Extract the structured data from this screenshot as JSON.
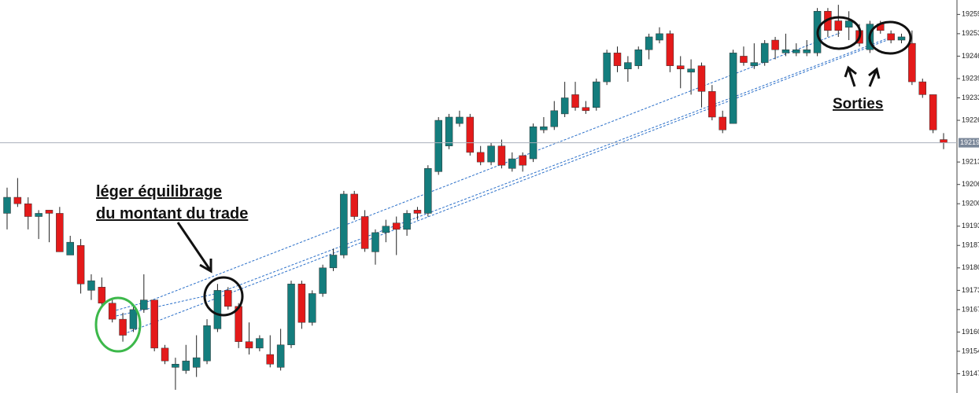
{
  "chart_data": {
    "type": "candlestick",
    "up_color": "#147d7d",
    "down_color": "#e41a1a",
    "ylim": [
      19141,
      19263.5
    ],
    "yticks": [
      19147,
      19154,
      19160,
      19167,
      19173,
      19180,
      19187,
      19193,
      19200,
      19206,
      19213,
      19226,
      19233,
      19239,
      19246,
      19253,
      19259
    ],
    "last_price": 19219,
    "annotations": [
      "léger équilibrage",
      "du montant du trade",
      "Sorties"
    ],
    "ohlc": [
      [
        19197,
        19205,
        19192,
        19202
      ],
      [
        19202,
        19208,
        19199,
        19200
      ],
      [
        19200,
        19202,
        19192,
        19196
      ],
      [
        19196,
        19198,
        19189,
        19197
      ],
      [
        19198,
        19198,
        19188,
        19197
      ],
      [
        19197,
        19199,
        19185,
        19185
      ],
      [
        19184,
        19190,
        19184,
        19188
      ],
      [
        19187,
        19189,
        19172,
        19175
      ],
      [
        19173,
        19178,
        19170,
        19176
      ],
      [
        19174,
        19177,
        19168,
        19169
      ],
      [
        19169,
        19170,
        19163,
        19164
      ],
      [
        19164,
        19166,
        19157,
        19159
      ],
      [
        19161,
        19168,
        19160,
        19167
      ],
      [
        19167,
        19178,
        19166,
        19170
      ],
      [
        19170,
        19170,
        19154,
        19155
      ],
      [
        19155,
        19156,
        19150,
        19151
      ],
      [
        19149,
        19152,
        19142,
        19150
      ],
      [
        19148,
        19156,
        19147,
        19151
      ],
      [
        19149,
        19159,
        19146,
        19152
      ],
      [
        19151,
        19164,
        19150,
        19162
      ],
      [
        19161,
        19175,
        19160,
        19173
      ],
      [
        19173,
        19174,
        19167,
        19168
      ],
      [
        19168,
        19169,
        19155,
        19157
      ],
      [
        19157,
        19163,
        19153,
        19155
      ],
      [
        19155,
        19159,
        19154,
        19158
      ],
      [
        19153,
        19159,
        19149,
        19150
      ],
      [
        19149,
        19161,
        19148,
        19156
      ],
      [
        19156,
        19176,
        19155,
        19175
      ],
      [
        19175,
        19176,
        19161,
        19163
      ],
      [
        19163,
        19173,
        19162,
        19172
      ],
      [
        19172,
        19181,
        19171,
        19180
      ],
      [
        19180,
        19186,
        19179,
        19184
      ],
      [
        19184,
        19204,
        19183,
        19203
      ],
      [
        19203,
        19204,
        19195,
        19196
      ],
      [
        19196,
        19198,
        19185,
        19186
      ],
      [
        19185,
        19192,
        19181,
        19191
      ],
      [
        19191,
        19195,
        19188,
        19193
      ],
      [
        19194,
        19196,
        19184,
        19192
      ],
      [
        19192,
        19198,
        19190,
        19197
      ],
      [
        19198,
        19199,
        19195,
        19197
      ],
      [
        19197,
        19212,
        19196,
        19211
      ],
      [
        19210,
        19227,
        19209,
        19226
      ],
      [
        19218,
        19228,
        19217,
        19227
      ],
      [
        19225,
        19229,
        19224,
        19227
      ],
      [
        19227,
        19228,
        19215,
        19216
      ],
      [
        19216,
        19218,
        19212,
        19213
      ],
      [
        19213,
        19219,
        19212,
        19218
      ],
      [
        19218,
        19220,
        19211,
        19212
      ],
      [
        19211,
        19216,
        19210,
        19214
      ],
      [
        19215,
        19216,
        19210,
        19212
      ],
      [
        19214,
        19225,
        19213,
        19224
      ],
      [
        19223,
        19227,
        19222,
        19224
      ],
      [
        19224,
        19232,
        19223,
        19229
      ],
      [
        19228,
        19238,
        19227,
        19233
      ],
      [
        19234,
        19238,
        19229,
        19230
      ],
      [
        19230,
        19232,
        19228,
        19229
      ],
      [
        19230,
        19239,
        19229,
        19238
      ],
      [
        19238,
        19248,
        19237,
        19247
      ],
      [
        19247,
        19249,
        19241,
        19243
      ],
      [
        19242,
        19246,
        19238,
        19244
      ],
      [
        19243,
        19249,
        19242,
        19248
      ],
      [
        19248,
        19253,
        19245,
        19252
      ],
      [
        19251,
        19255,
        19250,
        19253
      ],
      [
        19253,
        19254,
        19241,
        19243
      ],
      [
        19243,
        19246,
        19236,
        19242
      ],
      [
        19241,
        19245,
        19234,
        19242
      ],
      [
        19243,
        19244,
        19230,
        19235
      ],
      [
        19235,
        19237,
        19226,
        19227
      ],
      [
        19227,
        19229,
        19222,
        19223
      ],
      [
        19225,
        19248,
        19225,
        19247
      ],
      [
        19246,
        19249,
        19243,
        19244
      ],
      [
        19243,
        19250,
        19242,
        19244
      ],
      [
        19244,
        19251,
        19243,
        19250
      ],
      [
        19251,
        19252,
        19245,
        19248
      ],
      [
        19247,
        19253,
        19246,
        19248
      ],
      [
        19247,
        19250,
        19246,
        19248
      ],
      [
        19247,
        19251,
        19246,
        19248
      ],
      [
        19247,
        19261,
        19246,
        19260
      ],
      [
        19260,
        19261,
        19252,
        19254
      ],
      [
        19257,
        19262,
        19252,
        19254
      ],
      [
        19255,
        19260,
        19251,
        19257
      ],
      [
        19254,
        19256,
        19249,
        19250
      ],
      [
        19248,
        19257,
        19247,
        19256
      ],
      [
        19256,
        19257,
        19253,
        19254
      ],
      [
        19253,
        19254,
        19250,
        19251
      ],
      [
        19251,
        19253,
        19250,
        19252
      ],
      [
        19250,
        19254,
        19237,
        19238
      ],
      [
        19238,
        19239,
        19233,
        19234
      ],
      [
        19234,
        19234,
        19222,
        19223
      ],
      [
        19220,
        19222,
        19217,
        19219
      ]
    ]
  }
}
